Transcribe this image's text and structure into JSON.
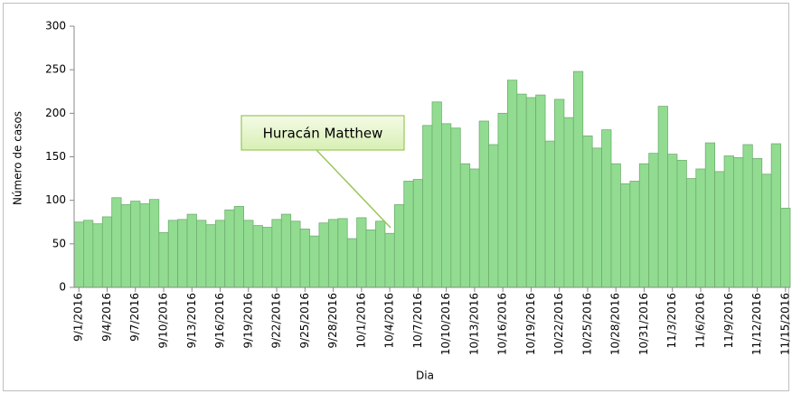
{
  "chart_data": {
    "type": "bar",
    "x_label": "Dia",
    "y_label": "Número de casos",
    "annotation": "Huracán Matthew",
    "color": "#92dc92",
    "edge_color": "#6fae6f",
    "ylim": [
      0,
      300
    ],
    "yticks": [
      0,
      50,
      100,
      150,
      200,
      250,
      300
    ],
    "categories": [
      "9/1/2016",
      null,
      null,
      "9/4/2016",
      null,
      null,
      "9/7/2016",
      null,
      null,
      "9/10/2016",
      null,
      null,
      "9/13/2016",
      null,
      null,
      "9/16/2016",
      null,
      null,
      "9/19/2016",
      null,
      null,
      "9/22/2016",
      null,
      null,
      "9/25/2016",
      null,
      null,
      "9/28/2016",
      null,
      null,
      "10/1/2016",
      null,
      null,
      "10/4/2016",
      null,
      null,
      "10/7/2016",
      null,
      null,
      "10/10/2016",
      null,
      null,
      "10/13/2016",
      null,
      null,
      "10/16/2016",
      null,
      null,
      "10/19/2016",
      null,
      null,
      "10/22/2016",
      null,
      null,
      "10/25/2016",
      null,
      null,
      "10/28/2016",
      null,
      null,
      "10/31/2016",
      null,
      null,
      "11/3/2016",
      null,
      null,
      "11/6/2016",
      null,
      null,
      "11/9/2016",
      null,
      null,
      "11/12/2016",
      null,
      null,
      "11/15/2016"
    ],
    "values": [
      75,
      77,
      73,
      81,
      103,
      95,
      99,
      96,
      101,
      63,
      77,
      78,
      84,
      77,
      72,
      77,
      89,
      93,
      77,
      71,
      69,
      78,
      84,
      76,
      67,
      59,
      74,
      78,
      79,
      56,
      80,
      66,
      76,
      62,
      95,
      122,
      124,
      186,
      213,
      188,
      183,
      142,
      136,
      191,
      164,
      200,
      238,
      222,
      218,
      221,
      168,
      216,
      195,
      248,
      174,
      160,
      181,
      142,
      119,
      122,
      142,
      154,
      208,
      153,
      146,
      125,
      136,
      166,
      133,
      151,
      149,
      164,
      148,
      130,
      165,
      91
    ]
  }
}
